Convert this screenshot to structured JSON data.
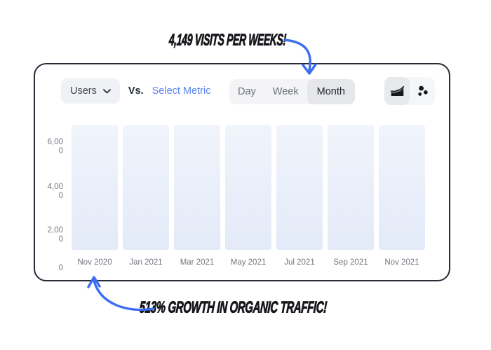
{
  "colors": {
    "accent_link_blue": "#5a83ee",
    "arrow_blue": "#3c6cf3",
    "card_border": "#272c37",
    "bar_top": "#f0f4fb",
    "bar_bottom": "#e3eaf8",
    "icon_black": "#17181a"
  },
  "annotations": {
    "top_note": "4,149 VISITS PER WEEKS!",
    "bottom_note": "513% GROWTH IN ORGANIC TRAFFIC!"
  },
  "card": {
    "toolbar": {
      "metric_dropdown": {
        "value": "Users",
        "chevron_icon": "chevron-down-icon"
      },
      "vs_label": "Vs.",
      "select_metric_label": "Select Metric",
      "tabs": [
        "Day",
        "Week",
        "Month"
      ],
      "active_tab": "Month",
      "view_icons": [
        "area-chart-icon",
        "scatter-dots-icon"
      ],
      "active_view": "area-chart-icon"
    }
  },
  "chart_data": {
    "type": "bar",
    "title": "",
    "xlabel": "",
    "ylabel": "",
    "categories": [
      "Nov 2020",
      "Jan 2021",
      "Mar 2021",
      "May 2021",
      "Jul 2021",
      "Sep 2021",
      "Nov 2021"
    ],
    "values": [
      7000,
      7000,
      7000,
      7000,
      7000,
      7000,
      7000
    ],
    "yticks": [
      "6,000",
      "4,000",
      "2,000",
      "0"
    ],
    "ylim": [
      0,
      7000
    ],
    "grid": false,
    "legend": false,
    "note_bars_equal_placeholder_height": true
  }
}
